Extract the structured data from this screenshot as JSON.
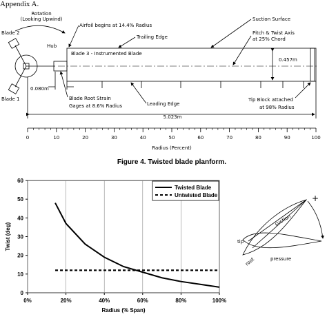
{
  "header": {
    "title": "Appendix A."
  },
  "figure4": {
    "rotation": "Rotation",
    "rotation_note": "(Looking Upwind)",
    "blade2": "Blade 2",
    "hub": "Hub",
    "blade1": "Blade 1",
    "airfoil_begins": "Airfoil begins at 14.4% Radius",
    "trailing_edge": "Trailing Edge",
    "suction_surface": "Suction Surface",
    "pitch_axis": [
      "Pitch & Twist Axis",
      "at 25% Chord"
    ],
    "blade3": "Blade 3 - Instrumented Blade",
    "chord": "0.457m",
    "root_offset": "0.080m",
    "strain_gages": [
      "Blade Root Strain",
      "Gages at 8.6% Radius"
    ],
    "leading_edge": "Leading Edge",
    "tip_block": [
      "Tip Block attached",
      "at 98% Radius"
    ],
    "span": "5.023m",
    "ruler": {
      "ticks": [
        0,
        10,
        20,
        30,
        40,
        50,
        60,
        70,
        80,
        90,
        100
      ],
      "label": "Radius (Percent)"
    },
    "caption": "Figure 4.  Twisted blade planform."
  },
  "chart_data": {
    "type": "line",
    "xlabel": "Radius (% Span)",
    "ylabel": "Twist (deg)",
    "xlim": [
      0,
      100
    ],
    "xticks": [
      {
        "value": 0,
        "label": "0%"
      },
      {
        "value": 20,
        "label": "20%"
      },
      {
        "value": 40,
        "label": "40%"
      },
      {
        "value": 60,
        "label": "60%"
      },
      {
        "value": 80,
        "label": "80%"
      },
      {
        "value": 100,
        "label": "100%"
      }
    ],
    "ylim": [
      0,
      60
    ],
    "yticks": [
      0,
      10,
      20,
      30,
      40,
      50,
      60
    ],
    "grid": "x",
    "legend": "top-right",
    "series": [
      {
        "name": "Twisted Blade",
        "color": "#000000",
        "dash": "solid",
        "x": [
          14.4,
          20,
          30,
          40,
          50,
          60,
          70,
          80,
          90,
          100
        ],
        "values": [
          48,
          37,
          26,
          19,
          14,
          11,
          8,
          6,
          4.5,
          3
        ]
      },
      {
        "name": "Untwisted Blade",
        "color": "#000000",
        "dash": "dashed",
        "x": [
          14.4,
          100
        ],
        "values": [
          12,
          12
        ]
      }
    ]
  },
  "figure_right": {
    "plus": "+",
    "suction": "suction",
    "tip": "tip",
    "root": "root",
    "pressure": "pressure"
  }
}
